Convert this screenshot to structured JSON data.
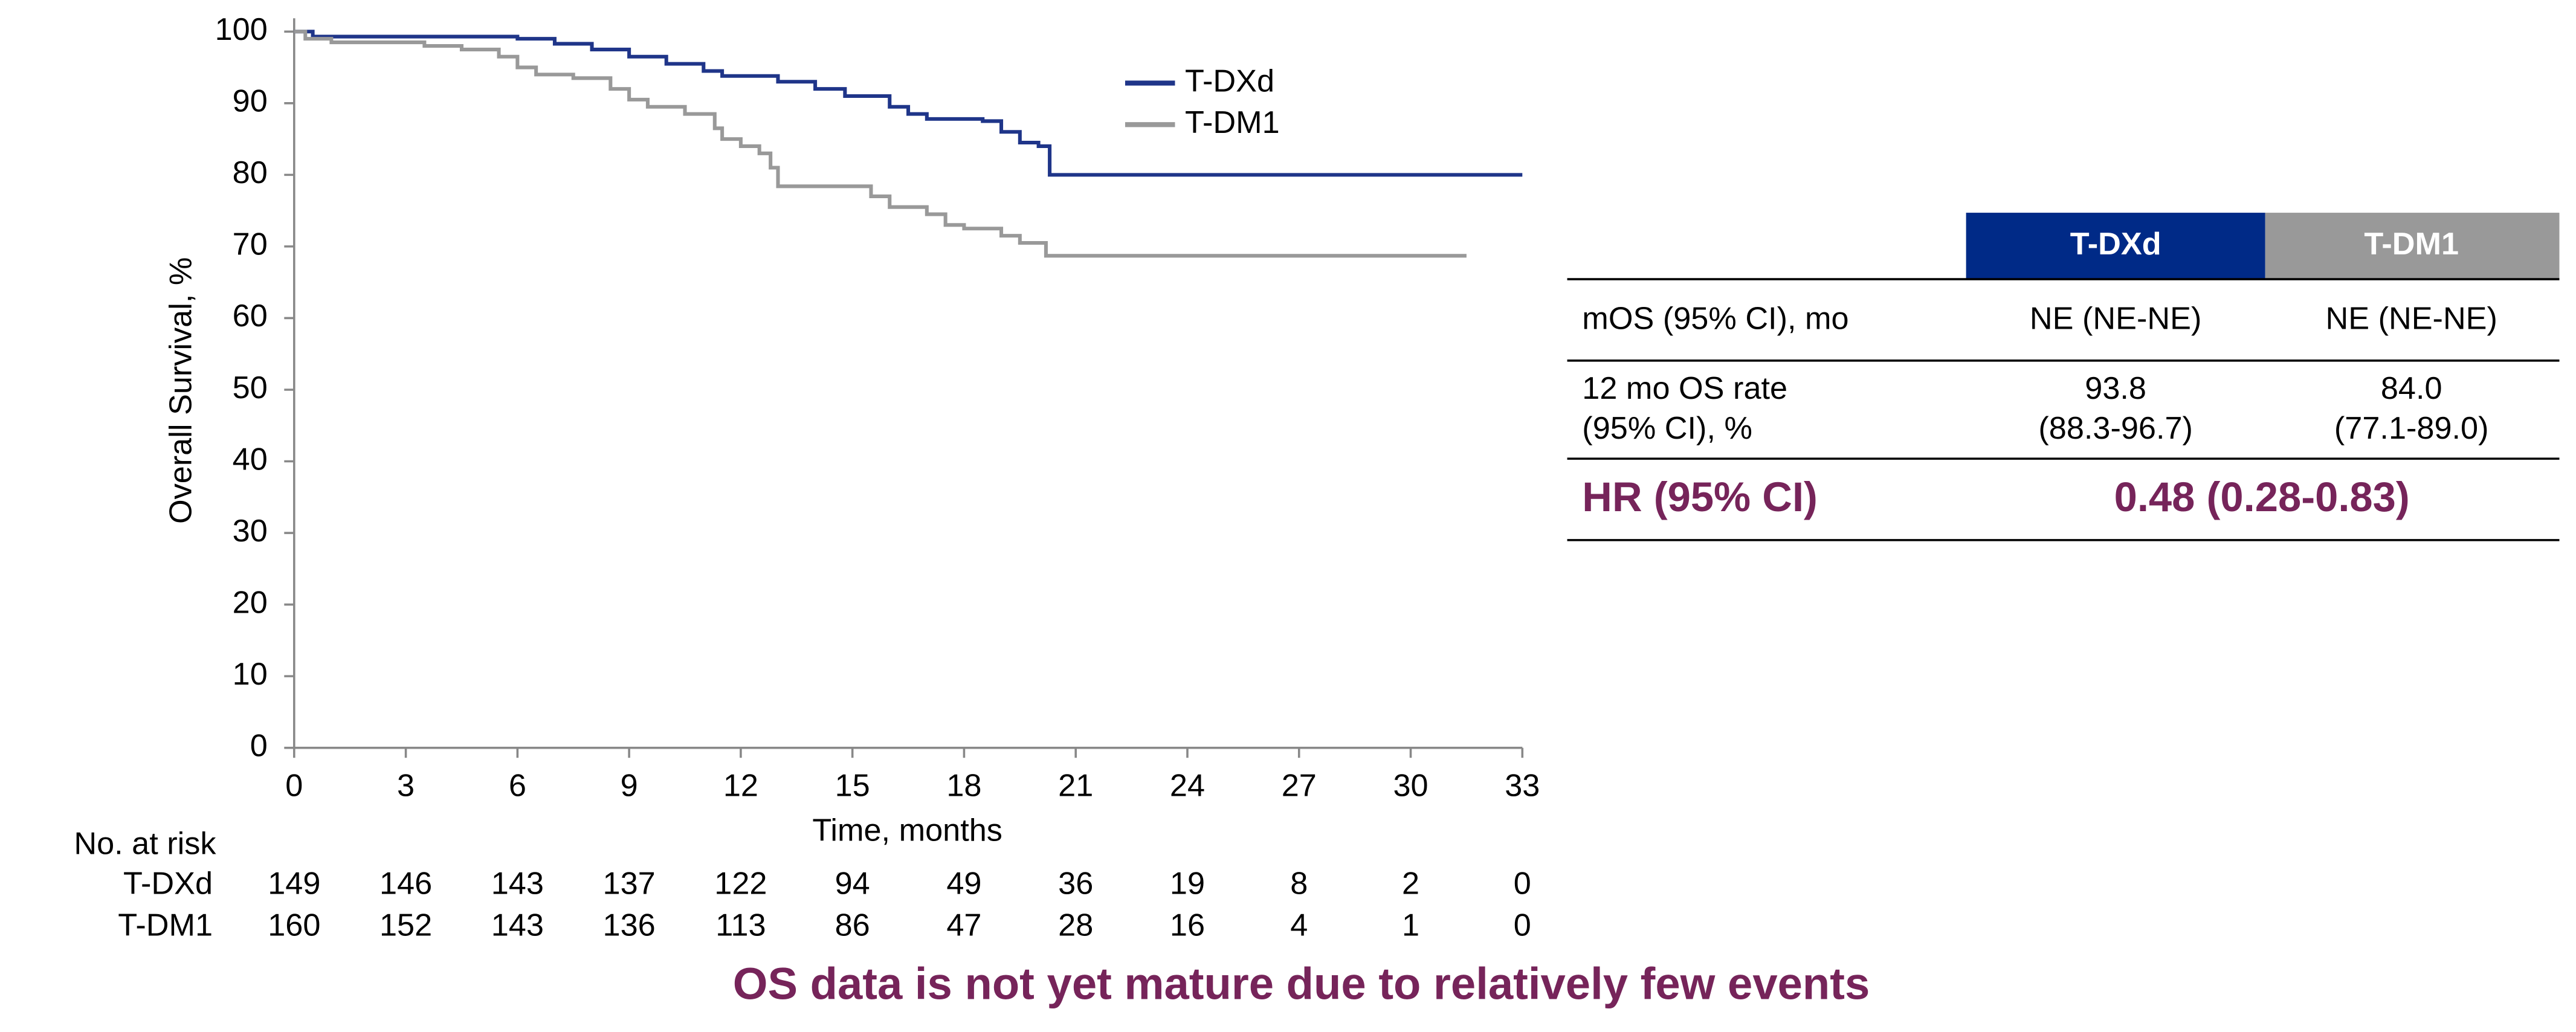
{
  "chart_data": {
    "type": "line",
    "step": true,
    "y_label": "Overall Survival, %",
    "x_label": "Time, months",
    "xlim": [
      0,
      33
    ],
    "xticks": [
      0,
      3,
      6,
      9,
      12,
      15,
      18,
      21,
      24,
      27,
      30,
      33
    ],
    "ylim": [
      0,
      100
    ],
    "yticks": [
      0,
      10,
      20,
      30,
      40,
      50,
      60,
      70,
      80,
      90,
      100
    ],
    "legend": "upper center",
    "series": [
      {
        "name": "T-DXd",
        "color": "#1f3589",
        "x": [
          0,
          0.5,
          6,
          7,
          8,
          9,
          10,
          11,
          11.5,
          13,
          14,
          14.8,
          16,
          16.5,
          17,
          18.5,
          19,
          19.5,
          20,
          20.3,
          33
        ],
        "values": [
          100,
          99.3,
          99,
          98.3,
          97.5,
          96.5,
          95.5,
          94.5,
          93.8,
          93,
          92,
          91,
          89.5,
          88.5,
          87.8,
          87.5,
          86,
          84.5,
          84,
          80,
          80
        ]
      },
      {
        "name": "T-DM1",
        "color": "#999999",
        "x": [
          0,
          0.3,
          1,
          3.5,
          4.5,
          5.5,
          6,
          6.5,
          7.5,
          8.5,
          9,
          9.5,
          10.5,
          11.3,
          11.5,
          12,
          12.5,
          12.8,
          13,
          15.5,
          16,
          17,
          17.5,
          18,
          19,
          19.5,
          20.2,
          31.5
        ],
        "values": [
          100,
          99,
          98.5,
          98,
          97.5,
          96.5,
          95,
          94,
          93.5,
          92,
          90.5,
          89.5,
          88.5,
          86.5,
          85,
          84,
          83,
          81,
          78.4,
          77,
          75.5,
          74.5,
          73,
          72.5,
          71.5,
          70.5,
          68.7,
          68.7
        ]
      }
    ],
    "risk_table": {
      "title": "No. at risk",
      "rows": [
        {
          "label": "T-DXd",
          "values": [
            149,
            146,
            143,
            137,
            122,
            94,
            49,
            36,
            19,
            8,
            2,
            0
          ]
        },
        {
          "label": "T-DM1",
          "values": [
            160,
            152,
            143,
            136,
            113,
            86,
            47,
            28,
            16,
            4,
            1,
            0
          ]
        }
      ]
    }
  },
  "table": {
    "header": [
      "T-DXd",
      "T-DM1"
    ],
    "rows": [
      [
        "mOS (95% CI), mo",
        "NE (NE-NE)",
        "NE (NE-NE)"
      ],
      [
        [
          "12 mo OS rate",
          "(95% CI), %"
        ],
        [
          "93.8",
          "(88.3-96.7)"
        ],
        [
          "84.0",
          "(77.1-89.0)"
        ]
      ]
    ],
    "hr_label": "HR (95% CI)",
    "hr_value": "0.48 (0.28-0.83)"
  },
  "footnote": "OS data is not yet mature due to relatively few events"
}
